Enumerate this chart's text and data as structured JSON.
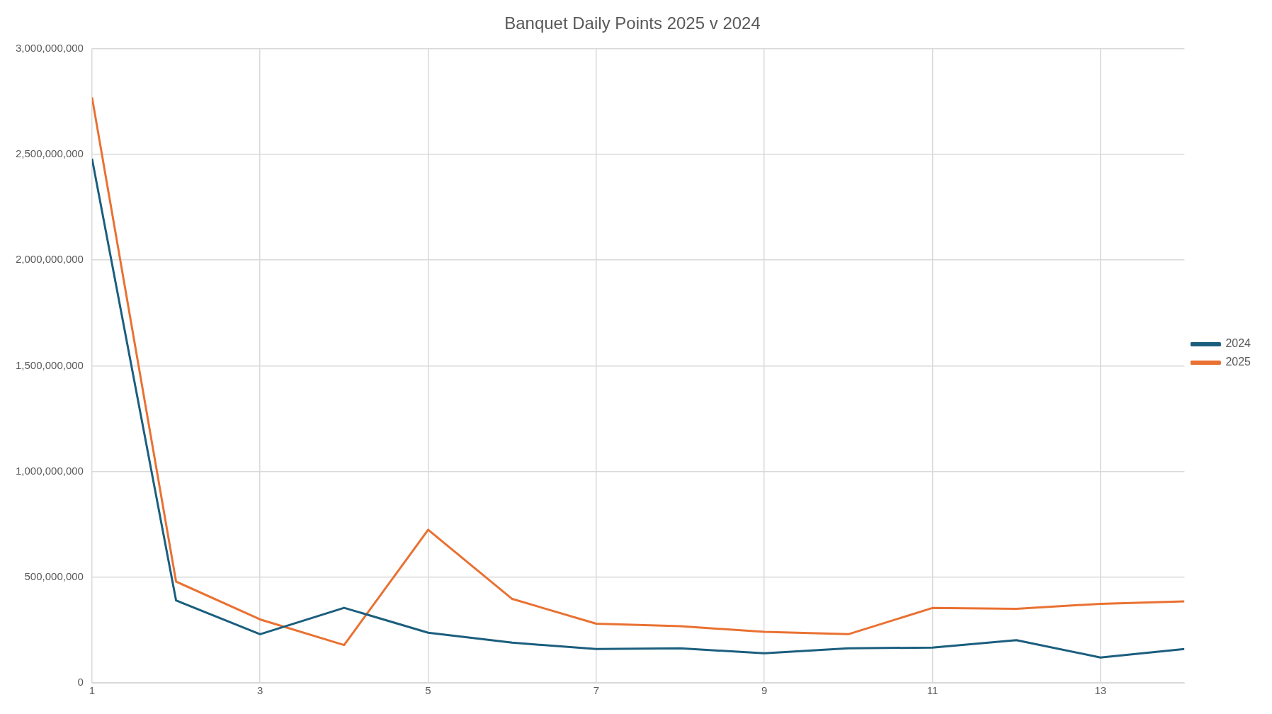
{
  "chart_data": {
    "type": "line",
    "title": "Banquet Daily Points 2025 v 2024",
    "x": [
      1,
      2,
      3,
      4,
      5,
      6,
      7,
      8,
      9,
      10,
      11,
      12,
      13,
      14
    ],
    "xlim": [
      1,
      14
    ],
    "xticks": [
      1,
      3,
      5,
      7,
      9,
      11,
      13
    ],
    "ylim": [
      0,
      3000000000
    ],
    "yticks": [
      0,
      {
        "value": 500000000,
        "label": "500,000,000"
      },
      {
        "value": 1000000000,
        "label": "1,000,000,000"
      },
      {
        "value": 1500000000,
        "label": "1,500,000,000"
      },
      {
        "value": 2000000000,
        "label": "2,000,000,000"
      },
      {
        "value": 2500000000,
        "label": "2,500,000,000"
      },
      {
        "value": 3000000000,
        "label": "3,000,000,000"
      }
    ],
    "grid": true,
    "legend": "right",
    "marker": "none",
    "line_style": "solid",
    "series": [
      {
        "name": "2024",
        "color": "#1b5e7e",
        "values": [
          2480000000,
          390000000,
          230000000,
          355000000,
          237000000,
          190000000,
          160000000,
          163000000,
          140000000,
          163000000,
          167000000,
          202000000,
          120000000,
          160000000
        ]
      },
      {
        "name": "2025",
        "color": "#e97132",
        "values": [
          2770000000,
          479000000,
          300000000,
          179000000,
          724000000,
          397000000,
          280000000,
          268000000,
          241000000,
          230000000,
          354000000,
          350000000,
          374000000,
          385000000
        ]
      }
    ]
  }
}
